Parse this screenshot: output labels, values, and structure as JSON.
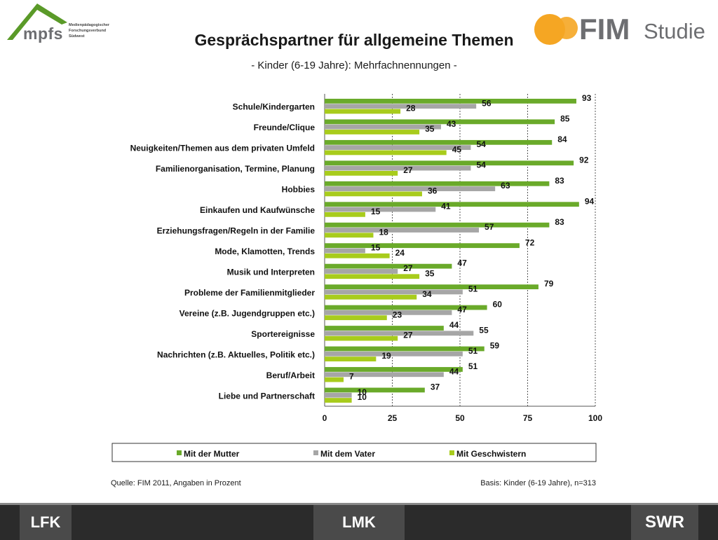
{
  "header": {
    "title": "Gesprächspartner für allgemeine Themen",
    "subtitle": "- Kinder (6-19 Jahre): Mehrfachnennungen -"
  },
  "logos": {
    "mpfs": "mpfs",
    "mpfs_sub": [
      "Medienpädagogischer",
      "Forschungsverbund",
      "Südwest"
    ],
    "fim": "FIM",
    "fim_studie": "Studie"
  },
  "footer": {
    "source": "Quelle: FIM 2011,  Angaben in Prozent",
    "basis": "Basis: Kinder (6-19 Jahre), n=313",
    "logo_left": "LFK",
    "logo_center": "LMK",
    "logo_right": "SWR"
  },
  "colors": {
    "mutter": "#6aaa2a",
    "vater": "#a6a6a6",
    "geschwister": "#a8cc1c",
    "logo_green": "#5a9a28",
    "logo_orange": "#f5a623"
  },
  "chart_data": {
    "type": "bar",
    "orientation": "horizontal",
    "categories": [
      "Schule/Kindergarten",
      "Freunde/Clique",
      "Neuigkeiten/Themen  aus dem privaten Umfeld",
      "Familienorganisation, Termine, Planung",
      "Hobbies",
      "Einkaufen und Kaufwünsche",
      "Erziehungsfragen/Regeln  in der Familie",
      "Mode, Klamotten, Trends",
      "Musik und Interpreten",
      "Probleme der Familienmitglieder",
      "Vereine  (z.B. Jugendgruppen  etc.)",
      "Sportereignisse",
      "Nachrichten  (z.B. Aktuelles, Politik etc.)",
      "Beruf/Arbeit",
      "Liebe und Partnerschaft"
    ],
    "series": [
      {
        "name": "Mit der Mutter",
        "values": [
          93,
          85,
          84,
          92,
          83,
          94,
          83,
          72,
          47,
          79,
          60,
          44,
          59,
          51,
          37
        ]
      },
      {
        "name": "Mit dem Vater",
        "values": [
          56,
          43,
          54,
          54,
          63,
          41,
          57,
          15,
          27,
          51,
          47,
          55,
          51,
          44,
          10
        ]
      },
      {
        "name": "Mit Geschwistern",
        "values": [
          28,
          35,
          45,
          27,
          36,
          15,
          18,
          24,
          35,
          34,
          23,
          27,
          19,
          7,
          10
        ]
      }
    ],
    "xlim": [
      0,
      100
    ],
    "xticks": [
      "0",
      "25",
      "50",
      "75",
      "100"
    ],
    "grid": "vertical dashed",
    "legend": "bottom"
  }
}
